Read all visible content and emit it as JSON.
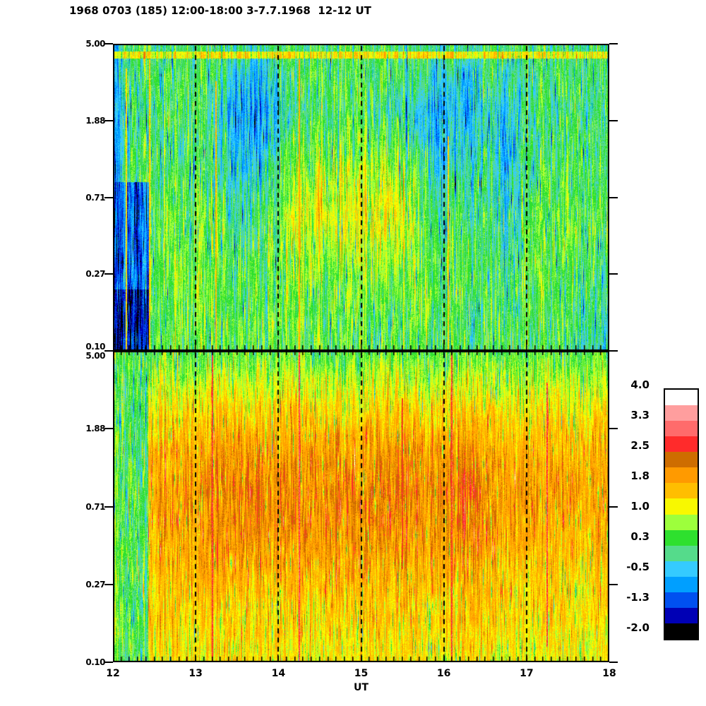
{
  "title": "1968 0703 (185) 12:00-18:00 3-7.7.1968  12-12 UT",
  "chart_data": {
    "type": "heatmap",
    "title": "1968 0703 (185) 12:00-18:00 3-7.7.1968  12-12 UT",
    "xlabel": "UT",
    "x_range": [
      12,
      18
    ],
    "x_tick_labels": [
      "12",
      "13",
      "14",
      "15",
      "16",
      "17",
      "18"
    ],
    "hour_gridlines": [
      13,
      14,
      15,
      16,
      17
    ],
    "y_scale": "log",
    "y_range": [
      0.1,
      5.0
    ],
    "y_tick_labels": [
      "5.00",
      "1.88",
      "0.71",
      "0.27",
      "0.10"
    ],
    "colorbar": {
      "range": [
        -2,
        4
      ],
      "tick_labels": [
        "4.0",
        "3.3",
        "2.5",
        "1.8",
        "1.0",
        "0.3",
        "-0.5",
        "-1.3",
        "-2.0"
      ],
      "colors_low_to_high": [
        "#000000",
        "#0000B5",
        "#0050F0",
        "#009FFF",
        "#35CBFF",
        "#55DB8B",
        "#2EE02E",
        "#9DFF3C",
        "#F8F800",
        "#FFBE00",
        "#FF9A00",
        "#CE6D00",
        "#FF2B2B",
        "#FF6B6B",
        "#FF9E9E",
        "#FFFFFF"
      ]
    },
    "panels": [
      {
        "name": "top",
        "base_grid": [
          [
            0.2,
            0.3,
            0.3,
            0.3,
            0.3,
            0.2,
            0.1,
            0.1,
            0.2,
            0.3,
            0.3,
            0.3,
            0.3,
            0.3,
            0.2,
            0.1,
            0.1,
            0.2,
            0.3,
            0.2,
            0.3,
            0.3,
            0.3,
            0.3,
            0.3
          ],
          [
            0.0,
            0.2,
            0.4,
            0.4,
            0.3,
            0.1,
            -0.3,
            -0.4,
            -0.1,
            0.3,
            0.4,
            0.3,
            0.3,
            0.3,
            0.2,
            -0.1,
            -0.3,
            -0.2,
            0.1,
            -0.2,
            0.2,
            0.4,
            0.3,
            0.3,
            0.3
          ],
          [
            -0.2,
            0.1,
            0.3,
            0.4,
            0.2,
            -0.1,
            -0.6,
            -0.7,
            -0.2,
            0.2,
            0.3,
            0.3,
            0.2,
            0.2,
            0.0,
            -0.4,
            -0.6,
            -0.4,
            0.0,
            -0.5,
            0.1,
            0.3,
            0.3,
            0.2,
            0.2
          ],
          [
            -0.3,
            0.2,
            0.4,
            0.4,
            0.3,
            0.1,
            -0.5,
            -0.4,
            0.1,
            0.5,
            0.6,
            0.5,
            0.5,
            0.6,
            0.4,
            -0.1,
            -0.4,
            -0.2,
            0.1,
            -0.6,
            0.2,
            0.4,
            0.4,
            0.3,
            0.3
          ],
          [
            -0.4,
            0.3,
            0.5,
            0.5,
            0.4,
            0.2,
            -0.2,
            -0.1,
            0.4,
            0.8,
            1.0,
            0.8,
            0.9,
            1.1,
            0.9,
            0.3,
            -0.2,
            0.1,
            0.3,
            -0.5,
            0.3,
            0.5,
            0.5,
            0.4,
            0.4
          ],
          [
            -0.5,
            0.2,
            0.6,
            0.6,
            0.5,
            0.4,
            0.0,
            0.2,
            0.6,
            1.1,
            1.3,
            1.0,
            1.2,
            1.4,
            1.1,
            0.5,
            0.1,
            0.3,
            0.4,
            -0.4,
            0.4,
            0.6,
            0.6,
            0.5,
            0.5
          ],
          [
            -0.6,
            0.2,
            0.6,
            0.7,
            0.6,
            0.5,
            0.3,
            0.4,
            0.6,
            0.8,
            0.9,
            0.8,
            0.8,
            0.9,
            0.8,
            0.5,
            0.3,
            0.4,
            0.5,
            -0.2,
            0.5,
            0.6,
            0.6,
            0.5,
            0.5
          ],
          [
            -0.7,
            0.2,
            0.6,
            0.7,
            0.6,
            0.5,
            0.4,
            0.5,
            0.5,
            0.6,
            0.6,
            0.6,
            0.6,
            0.6,
            0.6,
            0.5,
            0.4,
            0.4,
            0.5,
            0.0,
            0.5,
            0.6,
            0.5,
            0.4,
            0.0
          ],
          [
            -0.8,
            0.1,
            0.5,
            0.6,
            0.6,
            0.5,
            0.4,
            0.5,
            0.5,
            0.5,
            0.5,
            0.5,
            0.5,
            0.5,
            0.5,
            0.5,
            0.4,
            0.4,
            0.4,
            0.2,
            0.4,
            0.5,
            0.4,
            0.3,
            -0.2
          ],
          [
            -0.9,
            0.1,
            0.5,
            0.6,
            0.5,
            0.5,
            0.4,
            0.4,
            0.4,
            0.5,
            0.5,
            0.4,
            0.4,
            0.5,
            0.4,
            0.4,
            0.4,
            0.4,
            0.4,
            0.3,
            0.4,
            0.4,
            0.3,
            0.2,
            -0.3
          ]
        ],
        "band": {
          "y0": 0.024,
          "y1": 0.047,
          "v": 1.25
        },
        "rects": [
          {
            "x0": 12.0,
            "x1": 12.43,
            "y0": 0.45,
            "y1": 0.8,
            "v": -0.9
          },
          {
            "x0": 12.0,
            "x1": 12.43,
            "y0": 0.8,
            "y1": 1.0,
            "v": -1.4
          },
          {
            "x0": 12.0,
            "x1": 12.06,
            "y0": 0.0,
            "y1": 0.45,
            "v": -0.5
          }
        ],
        "spikes": [
          {
            "x": 12.16,
            "v": 1.4,
            "y0": 0.08,
            "y1": 1.0
          },
          {
            "x": 12.44,
            "v": 1.5,
            "y0": 0.05,
            "y1": 1.0
          },
          {
            "x": 13.25,
            "v": 1.6,
            "y0": 0.12,
            "y1": 1.0
          },
          {
            "x": 14.25,
            "v": 1.7,
            "y0": 0.05,
            "y1": 1.0
          },
          {
            "x": 16.05,
            "v": 1.5,
            "y0": 0.3,
            "y1": 1.0
          }
        ],
        "texture": {
          "seed": 1968,
          "col_amp": 0.3,
          "block_amp": 0.25,
          "block_w": 3,
          "seg_amp": 0.5,
          "seg_len": 22,
          "seg2_amp": 0.3,
          "seg2_len": 70,
          "fine_amp": 0.18,
          "p_drop": 0.03,
          "drop": 1.3,
          "p_up": 0.03,
          "up": 0.8
        }
      },
      {
        "name": "bottom",
        "base_grid": [
          [
            0.5,
            0.5,
            0.5,
            0.5,
            0.5,
            0.5,
            0.5,
            0.5,
            0.5,
            0.5,
            0.5,
            0.5,
            0.5,
            0.5,
            0.5,
            0.5,
            0.5,
            0.5,
            0.5,
            0.5,
            0.5,
            0.5,
            0.5,
            0.5,
            0.5
          ],
          [
            0.9,
            0.9,
            1.0,
            1.0,
            1.0,
            1.1,
            1.1,
            1.0,
            1.0,
            1.1,
            1.1,
            1.1,
            1.0,
            1.1,
            1.1,
            1.0,
            1.0,
            1.1,
            1.0,
            1.0,
            1.0,
            1.0,
            1.0,
            0.9,
            0.9
          ],
          [
            1.4,
            1.4,
            1.4,
            1.5,
            1.5,
            1.6,
            1.6,
            1.5,
            1.5,
            1.6,
            1.6,
            1.6,
            1.5,
            1.6,
            1.6,
            1.5,
            1.5,
            1.6,
            1.5,
            1.5,
            1.5,
            1.4,
            1.4,
            1.4,
            1.4
          ],
          [
            1.7,
            1.7,
            1.7,
            1.8,
            1.8,
            1.9,
            2.0,
            1.9,
            1.8,
            1.9,
            1.9,
            2.0,
            1.9,
            1.9,
            2.0,
            1.9,
            1.9,
            2.0,
            1.9,
            1.8,
            1.8,
            1.7,
            1.7,
            1.7,
            1.7
          ],
          [
            1.8,
            1.8,
            1.8,
            1.9,
            2.0,
            2.1,
            2.2,
            2.1,
            2.0,
            2.0,
            2.1,
            2.2,
            2.1,
            2.0,
            2.2,
            2.1,
            2.1,
            2.2,
            2.1,
            2.0,
            2.0,
            1.9,
            1.9,
            1.8,
            1.8
          ],
          [
            1.8,
            1.8,
            1.8,
            1.9,
            1.9,
            2.0,
            2.1,
            2.0,
            1.9,
            2.0,
            2.0,
            2.1,
            2.0,
            2.0,
            2.1,
            2.0,
            2.0,
            2.1,
            2.0,
            1.9,
            1.9,
            1.8,
            1.8,
            1.7,
            1.7
          ],
          [
            1.7,
            1.7,
            1.7,
            1.8,
            1.8,
            1.9,
            1.9,
            1.8,
            1.7,
            1.8,
            1.9,
            1.9,
            1.8,
            1.8,
            1.9,
            1.8,
            1.8,
            1.9,
            1.8,
            1.7,
            1.7,
            1.6,
            1.6,
            1.6,
            1.6
          ],
          [
            1.5,
            1.5,
            1.5,
            1.6,
            1.6,
            1.6,
            1.6,
            1.6,
            1.5,
            1.6,
            1.6,
            1.6,
            1.6,
            1.6,
            1.6,
            1.6,
            1.5,
            1.6,
            1.6,
            1.5,
            1.5,
            1.5,
            1.4,
            1.4,
            1.4
          ],
          [
            1.4,
            1.4,
            1.4,
            1.4,
            1.4,
            1.4,
            1.4,
            1.4,
            1.4,
            1.4,
            1.4,
            1.4,
            1.4,
            1.4,
            1.4,
            1.4,
            1.4,
            1.4,
            1.4,
            1.4,
            1.3,
            1.3,
            1.3,
            1.3,
            1.3
          ],
          [
            1.2,
            1.2,
            1.2,
            1.3,
            1.3,
            1.3,
            1.3,
            1.3,
            1.2,
            1.3,
            1.3,
            1.3,
            1.3,
            1.3,
            1.3,
            1.3,
            1.2,
            1.3,
            1.3,
            1.2,
            1.2,
            1.2,
            1.2,
            1.2,
            1.2
          ]
        ],
        "band": null,
        "rects": [
          {
            "x0": 12.0,
            "x1": 12.42,
            "y0": 0.0,
            "y1": 1.0,
            "v": 0.42
          }
        ],
        "spikes": [
          {
            "x": 13.2,
            "v": 2.7,
            "y0": 0.0,
            "y1": 1.0
          },
          {
            "x": 14.25,
            "v": 2.9,
            "y0": 0.0,
            "y1": 1.0
          },
          {
            "x": 15.5,
            "v": 2.6,
            "y0": 0.15,
            "y1": 0.7
          },
          {
            "x": 16.1,
            "v": 2.7,
            "y0": 0.0,
            "y1": 1.0
          },
          {
            "x": 17.25,
            "v": 2.8,
            "y0": 0.1,
            "y1": 0.95
          }
        ],
        "texture": {
          "seed": 703,
          "col_amp": 0.25,
          "block_amp": 0.2,
          "block_w": 3,
          "seg_amp": 0.45,
          "seg_len": 20,
          "seg2_amp": 0.25,
          "seg2_len": 60,
          "fine_amp": 0.18,
          "p_drop": 0.04,
          "drop": 1.2,
          "p_up": 0.03,
          "up": 1.0
        }
      }
    ]
  }
}
